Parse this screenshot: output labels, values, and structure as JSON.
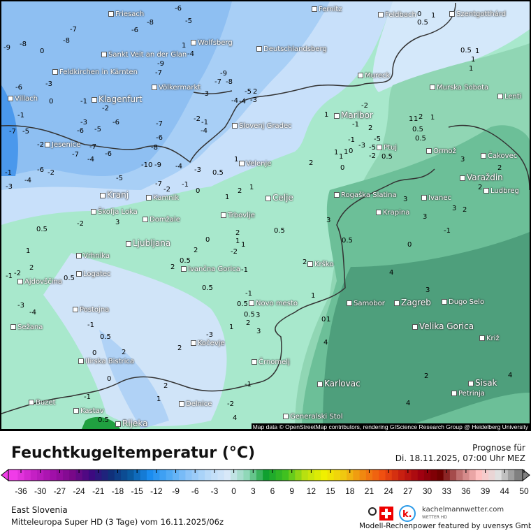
{
  "map": {
    "attribution": "Map data © OpenStreetMap contributors, rendering GIScience Research Group @ Heidelberg University",
    "cities": [
      "Friesach",
      "Wolfsberg",
      "Sankt Veit an der Glan",
      "Deutschlandsberg",
      "Feldkirchen in Kärnten",
      "Völkermarkt",
      "Villach",
      "Klagenfurt",
      "Slovenj Gradec",
      "Jesenice",
      "Velenje",
      "Kranj",
      "Kamnik",
      "Celje",
      "Škofja Loka",
      "Domžale",
      "Trbovlje",
      "Ljubljana",
      "Vrhnika",
      "Logatec",
      "Ivančna Gorica",
      "Ajdovščina",
      "Postojna",
      "Novo mesto",
      "Sežana",
      "Kočevje",
      "Ilirska Bistrica",
      "Črnomelj",
      "Buzet",
      "Kastav",
      "Delnice",
      "Rijeka",
      "Generalski Stol",
      "Fernitz",
      "Feldbach",
      "Szentgotthárd",
      "Mureck",
      "Murska Sobota",
      "Lenti",
      "Maribor",
      "Ptuj",
      "Ormož",
      "Čakovec",
      "Varaždin",
      "Ludbreg",
      "Rogaška Slatina",
      "Ivanec",
      "Krapina",
      "Krško",
      "Samobor",
      "Zagreb",
      "Dugo Selo",
      "Velika Gorica",
      "Križ",
      "Karlovac",
      "Sisak",
      "Petrinja"
    ],
    "contour_labels": [
      "-6",
      "-8",
      "-6",
      "-5",
      "-7",
      "-8",
      "-9",
      "-8",
      "-4",
      "-9",
      "-7",
      "-9",
      "-7",
      "-8",
      "-5",
      "-3",
      "-4",
      "-3",
      "-6",
      "-3",
      "-1",
      "-2",
      "-1",
      "0",
      "-1",
      "-4",
      "-3",
      "-6",
      "-5",
      "-6",
      "-7",
      "-6",
      "-2",
      "-4",
      "-7",
      "-5",
      "-2",
      "-7",
      "-7",
      "-4",
      "-6",
      "-5",
      "-8",
      "-10",
      "-9",
      "-4",
      "-3",
      "-7",
      "-1",
      "-2",
      "0",
      "1",
      "0.5",
      "2",
      "1",
      "1",
      "-3",
      "-2",
      "-1",
      "-4",
      "-6",
      "-5",
      "-3",
      "-1",
      "-2",
      "0",
      "1",
      "1",
      "2",
      "-5",
      "-2",
      "-1",
      "1",
      "1",
      "0",
      "0.5",
      "2",
      "1",
      "1",
      "0.5",
      "1",
      "2",
      "3",
      "3",
      "2",
      "3",
      "2",
      "3",
      "0",
      "0.5",
      "1",
      "1",
      "1",
      "1",
      "0.5",
      "2",
      "0.5",
      "0",
      "-1",
      "0.5",
      "-2",
      "0.5",
      "-1",
      "2",
      "1",
      "0.5",
      "0",
      "-2",
      "-3",
      "-4",
      "-1",
      "0.5",
      "0",
      "-1",
      "0.5",
      "0",
      "2",
      "1",
      "2",
      "3",
      "2",
      "-2",
      "-1",
      "0",
      "0.5",
      "-1",
      "0.5",
      "1",
      "0.5",
      "2",
      "2",
      "1",
      "1",
      "2",
      "3",
      "3",
      "2",
      "1",
      "1",
      "0",
      "0.5",
      "3",
      "4",
      "3",
      "2",
      "4",
      "4",
      "4",
      "4",
      "2",
      "-3",
      "-2",
      "-1",
      "0.5",
      "1",
      "2"
    ]
  },
  "legend": {
    "title": "Feuchtkugeltemperatur (°C)",
    "forecast_label": "Prognose für",
    "forecast_time": "Di. 18.11.2025, 07:00 Uhr MEZ",
    "ticks": [
      "-36",
      "-30",
      "-27",
      "-24",
      "-21",
      "-18",
      "-15",
      "-12",
      "-9",
      "-6",
      "-3",
      "0",
      "3",
      "6",
      "9",
      "12",
      "15",
      "18",
      "21",
      "24",
      "27",
      "30",
      "33",
      "36",
      "39",
      "44",
      "50"
    ],
    "colors": [
      "#f03ce8",
      "#c420c4",
      "#a010a8",
      "#780888",
      "#3c0a80",
      "#10307a",
      "#0a5aa0",
      "#1a8cf0",
      "#50aaf5",
      "#8cc4f8",
      "#b8daf8",
      "#d8e8f8",
      "#90d8b8",
      "#10a030",
      "#40c020",
      "#b8e010",
      "#f0f000",
      "#f0c810",
      "#f08810",
      "#f05010",
      "#c82010",
      "#a00010",
      "#700000",
      "#c07070",
      "#ffc0c0",
      "#e0e0e0",
      "#808080"
    ]
  },
  "footer": {
    "region": "East Slovenia",
    "model": "Mitteleuropa Super HD (3 Tage) vom  16.11.2025/06z",
    "site": "kachelmannwetter.com",
    "site_sub": "WETTER HD",
    "power": "Modell-Rechenpower featured by uvensys GmbH",
    "logo_letter": "k."
  }
}
